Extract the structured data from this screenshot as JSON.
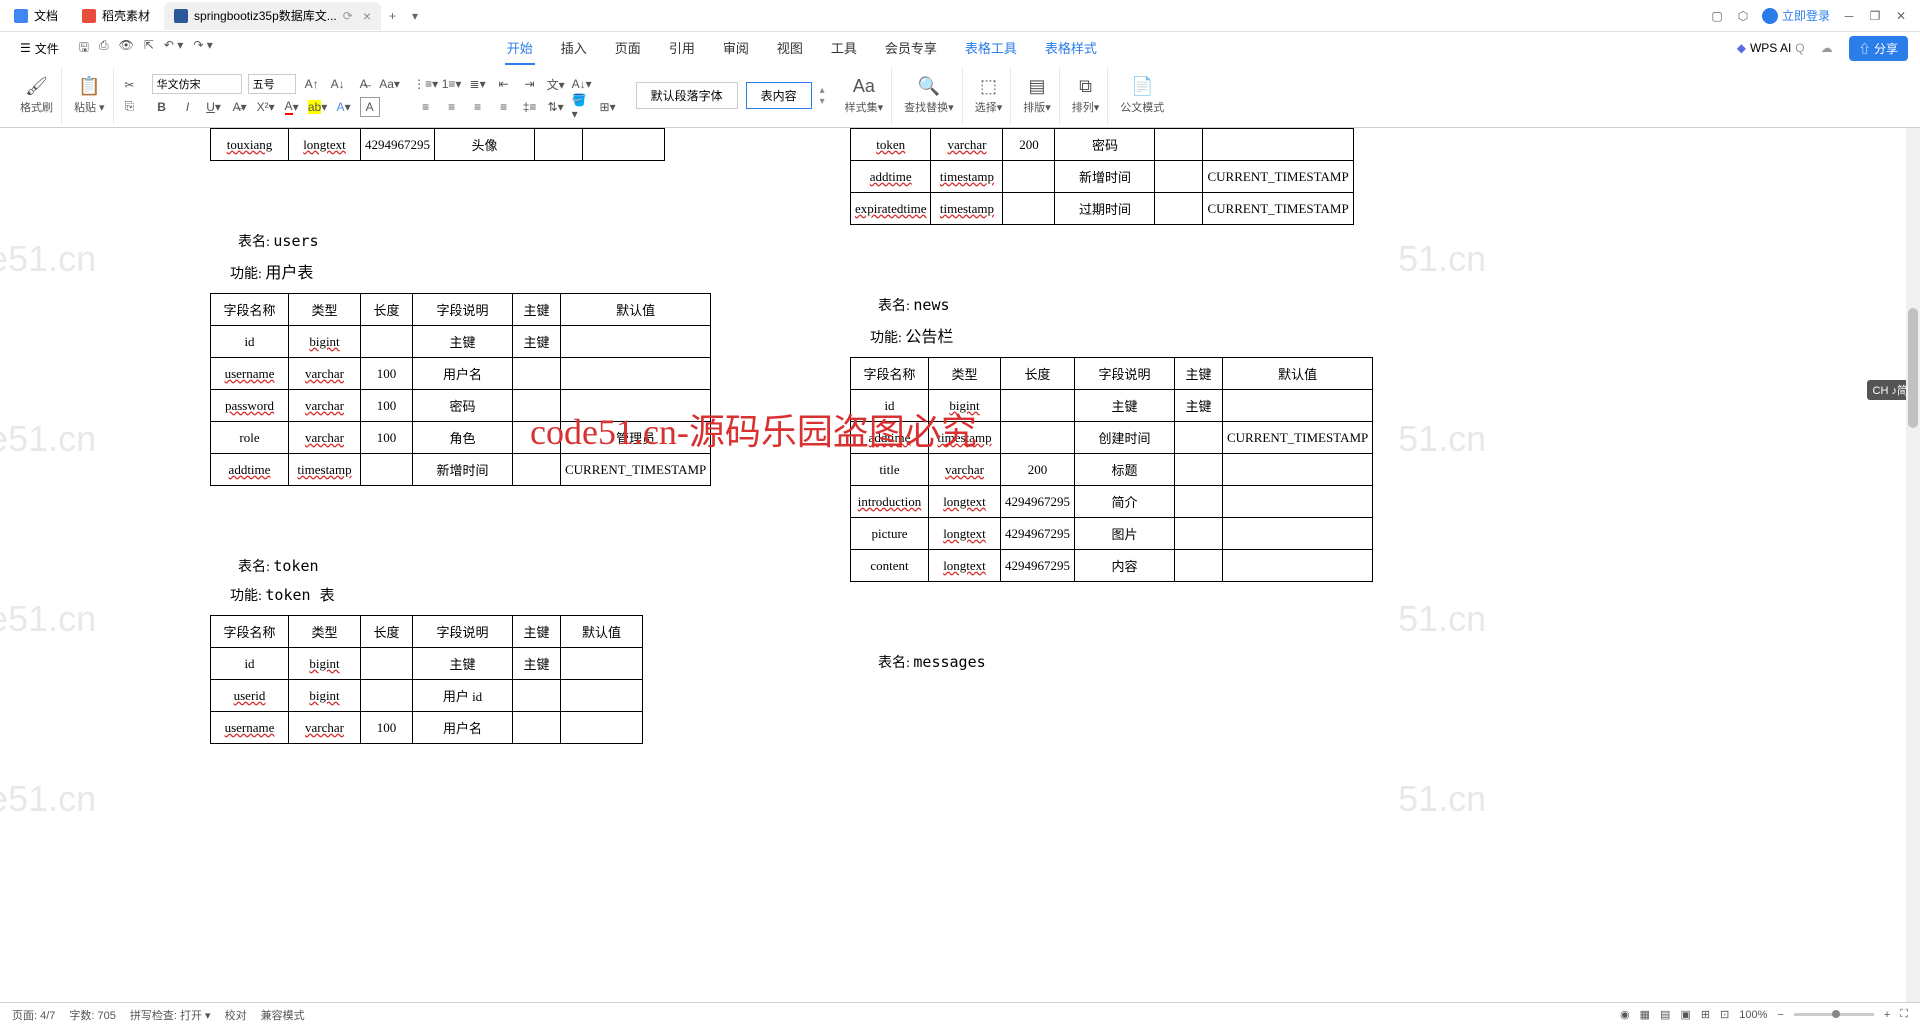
{
  "tabs": [
    {
      "label": "文档",
      "icon": "doc"
    },
    {
      "label": "稻壳素材",
      "icon": "red"
    },
    {
      "label": "springbootiz35p数据库文...",
      "icon": "word",
      "active": true
    }
  ],
  "titlebar": {
    "login": "立即登录"
  },
  "menu": {
    "file": "文件",
    "items": [
      "开始",
      "插入",
      "页面",
      "引用",
      "审阅",
      "视图",
      "工具",
      "会员专享",
      "表格工具",
      "表格样式"
    ],
    "wpsai": "WPS AI",
    "share": "分享"
  },
  "ribbon": {
    "format_painter": "格式刷",
    "paste": "粘贴",
    "font_name": "华文仿宋",
    "font_size": "五号",
    "style_default": "默认段落字体",
    "style_content": "表内容",
    "styleset": "样式集",
    "findreplace": "查找替换",
    "select": "选择",
    "layout": "排版",
    "arrange": "排列",
    "officialdoc": "公文模式"
  },
  "left_page": {
    "top_table_row": {
      "name": "touxiang",
      "type": "longtext",
      "len": "4294967295",
      "desc": "头像",
      "pk": "",
      "def": ""
    },
    "users_title": "表名:",
    "users_name": "users",
    "users_func": "功能:",
    "users_func_val": "用户表",
    "headers": {
      "name": "字段名称",
      "type": "类型",
      "len": "长度",
      "desc": "字段说明",
      "pk": "主键",
      "def": "默认值"
    },
    "users_rows": [
      {
        "name": "id",
        "type": "bigint",
        "len": "",
        "desc": "主键",
        "pk": "主键",
        "def": ""
      },
      {
        "name": "username",
        "type": "varchar",
        "len": "100",
        "desc": "用户名",
        "pk": "",
        "def": ""
      },
      {
        "name": "password",
        "type": "varchar",
        "len": "100",
        "desc": "密码",
        "pk": "",
        "def": ""
      },
      {
        "name": "role",
        "type": "varchar",
        "len": "100",
        "desc": "角色",
        "pk": "",
        "def": "管理员"
      },
      {
        "name": "addtime",
        "type": "timestamp",
        "len": "",
        "desc": "新增时间",
        "pk": "",
        "def": "CURRENT_TIMESTAMP"
      }
    ],
    "token_title": "表名:",
    "token_name": "token",
    "token_func": "功能:",
    "token_func_val": "token 表",
    "token_rows": [
      {
        "name": "id",
        "type": "bigint",
        "len": "",
        "desc": "主键",
        "pk": "主键",
        "def": ""
      },
      {
        "name": "userid",
        "type": "bigint",
        "len": "",
        "desc": "用户 id",
        "pk": "",
        "def": ""
      },
      {
        "name": "username",
        "type": "varchar",
        "len": "100",
        "desc": "用户名",
        "pk": "",
        "def": ""
      }
    ]
  },
  "right_page": {
    "top_rows": [
      {
        "name": "token",
        "type": "varchar",
        "len": "200",
        "desc": "密码",
        "pk": "",
        "def": ""
      },
      {
        "name": "addtime",
        "type": "timestamp",
        "len": "",
        "desc": "新增时间",
        "pk": "",
        "def": "CURRENT_TIMESTAMP"
      },
      {
        "name": "expiratedtime",
        "type": "timestamp",
        "len": "",
        "desc": "过期时间",
        "pk": "",
        "def": "CURRENT_TIMESTAMP"
      }
    ],
    "news_title": "表名:",
    "news_name": "news",
    "news_func": "功能:",
    "news_func_val": "公告栏",
    "headers": {
      "name": "字段名称",
      "type": "类型",
      "len": "长度",
      "desc": "字段说明",
      "pk": "主键",
      "def": "默认值"
    },
    "news_rows": [
      {
        "name": "id",
        "type": "bigint",
        "len": "",
        "desc": "主键",
        "pk": "主键",
        "def": ""
      },
      {
        "name": "addtime",
        "type": "timestamp",
        "len": "",
        "desc": "创建时间",
        "pk": "",
        "def": "CURRENT_TIMESTAMP"
      },
      {
        "name": "title",
        "type": "varchar",
        "len": "200",
        "desc": "标题",
        "pk": "",
        "def": ""
      },
      {
        "name": "introduction",
        "type": "longtext",
        "len": "4294967295",
        "desc": "简介",
        "pk": "",
        "def": ""
      },
      {
        "name": "picture",
        "type": "longtext",
        "len": "4294967295",
        "desc": "图片",
        "pk": "",
        "def": ""
      },
      {
        "name": "content",
        "type": "longtext",
        "len": "4294967295",
        "desc": "内容",
        "pk": "",
        "def": ""
      }
    ],
    "messages_title": "表名:",
    "messages_name": "messages"
  },
  "overlay": "code51.cn-源码乐园盗图必究",
  "watermark": "code51.cn",
  "status": {
    "page": "页面: 4/7",
    "words": "字数: 705",
    "spell": "拼写检查: 打开",
    "proof": "校对",
    "compat": "兼容模式",
    "zoom": "100%",
    "ime": "CH ♪简"
  }
}
